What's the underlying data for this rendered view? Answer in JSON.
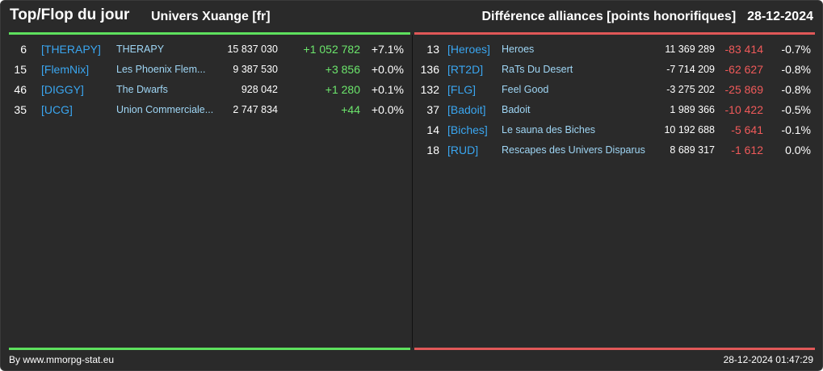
{
  "header": {
    "title": "Top/Flop du jour",
    "universe": "Univers Xuange [fr]",
    "subtitle": "Différence alliances [points honorifiques]",
    "date": "28-12-2024"
  },
  "top": [
    {
      "rank": "6",
      "tag": "[THERAPY]",
      "name": "THERAPY",
      "points": "15 837 030",
      "diff": "+1 052 782",
      "pct": "+7.1%"
    },
    {
      "rank": "15",
      "tag": "[FlemNix]",
      "name": "Les Phoenix Flem...",
      "points": "9 387 530",
      "diff": "+3 856",
      "pct": "+0.0%"
    },
    {
      "rank": "46",
      "tag": "[DIGGY]",
      "name": "The Dwarfs",
      "points": "928 042",
      "diff": "+1 280",
      "pct": "+0.1%"
    },
    {
      "rank": "35",
      "tag": "[UCG]",
      "name": "Union Commerciale...",
      "points": "2 747 834",
      "diff": "+44",
      "pct": "+0.0%"
    }
  ],
  "flop": [
    {
      "rank": "13",
      "tag": "[Heroes]",
      "name": "Heroes",
      "points": "11 369 289",
      "diff": "-83 414",
      "pct": "-0.7%"
    },
    {
      "rank": "136",
      "tag": "[RT2D]",
      "name": "RaTs Du Desert",
      "points": "-7 714 209",
      "diff": "-62 627",
      "pct": "-0.8%"
    },
    {
      "rank": "132",
      "tag": "[FLG]",
      "name": "Feel Good",
      "points": "-3 275 202",
      "diff": "-25 869",
      "pct": "-0.8%"
    },
    {
      "rank": "37",
      "tag": "[Badoit]",
      "name": "Badoit",
      "points": "1 989 366",
      "diff": "-10 422",
      "pct": "-0.5%"
    },
    {
      "rank": "14",
      "tag": "[Biches]",
      "name": "Le sauna des Biches",
      "points": "10 192 688",
      "diff": "-5 641",
      "pct": "-0.1%"
    },
    {
      "rank": "18",
      "tag": "[RUD]",
      "name": "Rescapes des Univers Disparus",
      "points": "8 689 317",
      "diff": "-1 612",
      "pct": "0.0%"
    }
  ],
  "footer": {
    "credit": "By www.mmorpg-stat.eu",
    "timestamp": "28-12-2024 01:47:29"
  },
  "colors": {
    "background": "#2a2a2a",
    "top_accent": "#5ee05e",
    "flop_accent": "#e05858",
    "tag": "#3aa6f0",
    "name": "#9fd6f5"
  }
}
